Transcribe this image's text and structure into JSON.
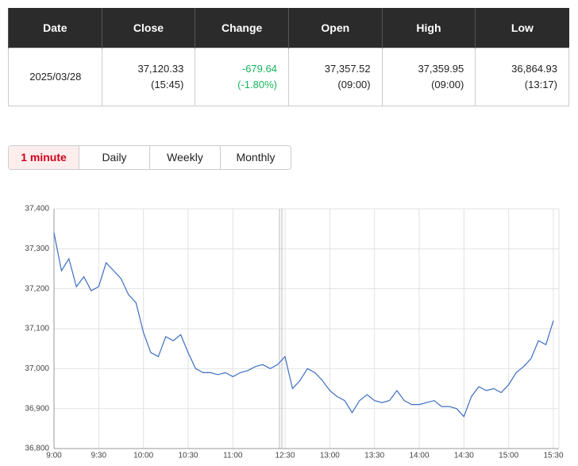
{
  "table": {
    "headers": [
      "Date",
      "Close",
      "Change",
      "Open",
      "High",
      "Low"
    ],
    "row": [
      {
        "main": "2025/03/28"
      },
      {
        "main": "37,120.33",
        "sub": "(15:45)"
      },
      {
        "main": "-679.64",
        "sub": "(-1.80%)"
      },
      {
        "main": "37,357.52",
        "sub": "(09:00)"
      },
      {
        "main": "37,359.95",
        "sub": "(09:00)"
      },
      {
        "main": "36,864.93",
        "sub": "(13:17)"
      }
    ]
  },
  "tabs": {
    "items": [
      "1 minute",
      "Daily",
      "Weekly",
      "Monthly"
    ],
    "active": 0
  },
  "chart_data": {
    "type": "line",
    "color": "#3b6fc2",
    "grid": true,
    "categories": [
      "9:00",
      null,
      null,
      null,
      null,
      null,
      "9:30",
      null,
      null,
      null,
      null,
      null,
      "10:00",
      null,
      null,
      null,
      null,
      null,
      "10:30",
      null,
      null,
      null,
      null,
      null,
      "11:00",
      null,
      null,
      null,
      null,
      null,
      null,
      "12:30",
      null,
      null,
      null,
      null,
      null,
      "13:00",
      null,
      null,
      null,
      null,
      null,
      "13:30",
      null,
      null,
      null,
      null,
      null,
      "14:00",
      null,
      null,
      null,
      null,
      null,
      "14:30",
      null,
      null,
      null,
      null,
      null,
      "15:00",
      null,
      null,
      null,
      null,
      null,
      "15:30"
    ],
    "values": [
      37340,
      37245,
      37275,
      37205,
      37230,
      37195,
      37205,
      37265,
      37245,
      37225,
      37185,
      37165,
      37090,
      37040,
      37030,
      37080,
      37070,
      37085,
      37040,
      37000,
      36990,
      36990,
      36985,
      36990,
      36980,
      36990,
      36995,
      37005,
      37010,
      37000,
      37010,
      37030,
      36950,
      36970,
      37000,
      36990,
      36970,
      36945,
      36930,
      36920,
      36890,
      36920,
      36935,
      36920,
      36915,
      36920,
      36945,
      36920,
      36910,
      36910,
      36915,
      36920,
      36905,
      36905,
      36900,
      36880,
      36930,
      36955,
      36945,
      36950,
      36940,
      36960,
      36990,
      37005,
      37025,
      37070,
      37060,
      37120
    ],
    "ylim": [
      36800,
      37400
    ],
    "yticks": [
      {
        "value": 36800,
        "label": "36,800"
      },
      {
        "value": 36900,
        "label": "36,900"
      },
      {
        "value": 37000,
        "label": "37,000"
      },
      {
        "value": 37100,
        "label": "37,100"
      },
      {
        "value": 37200,
        "label": "37,200"
      },
      {
        "value": 37300,
        "label": "37,300"
      },
      {
        "value": 37400,
        "label": "37,400"
      }
    ]
  }
}
